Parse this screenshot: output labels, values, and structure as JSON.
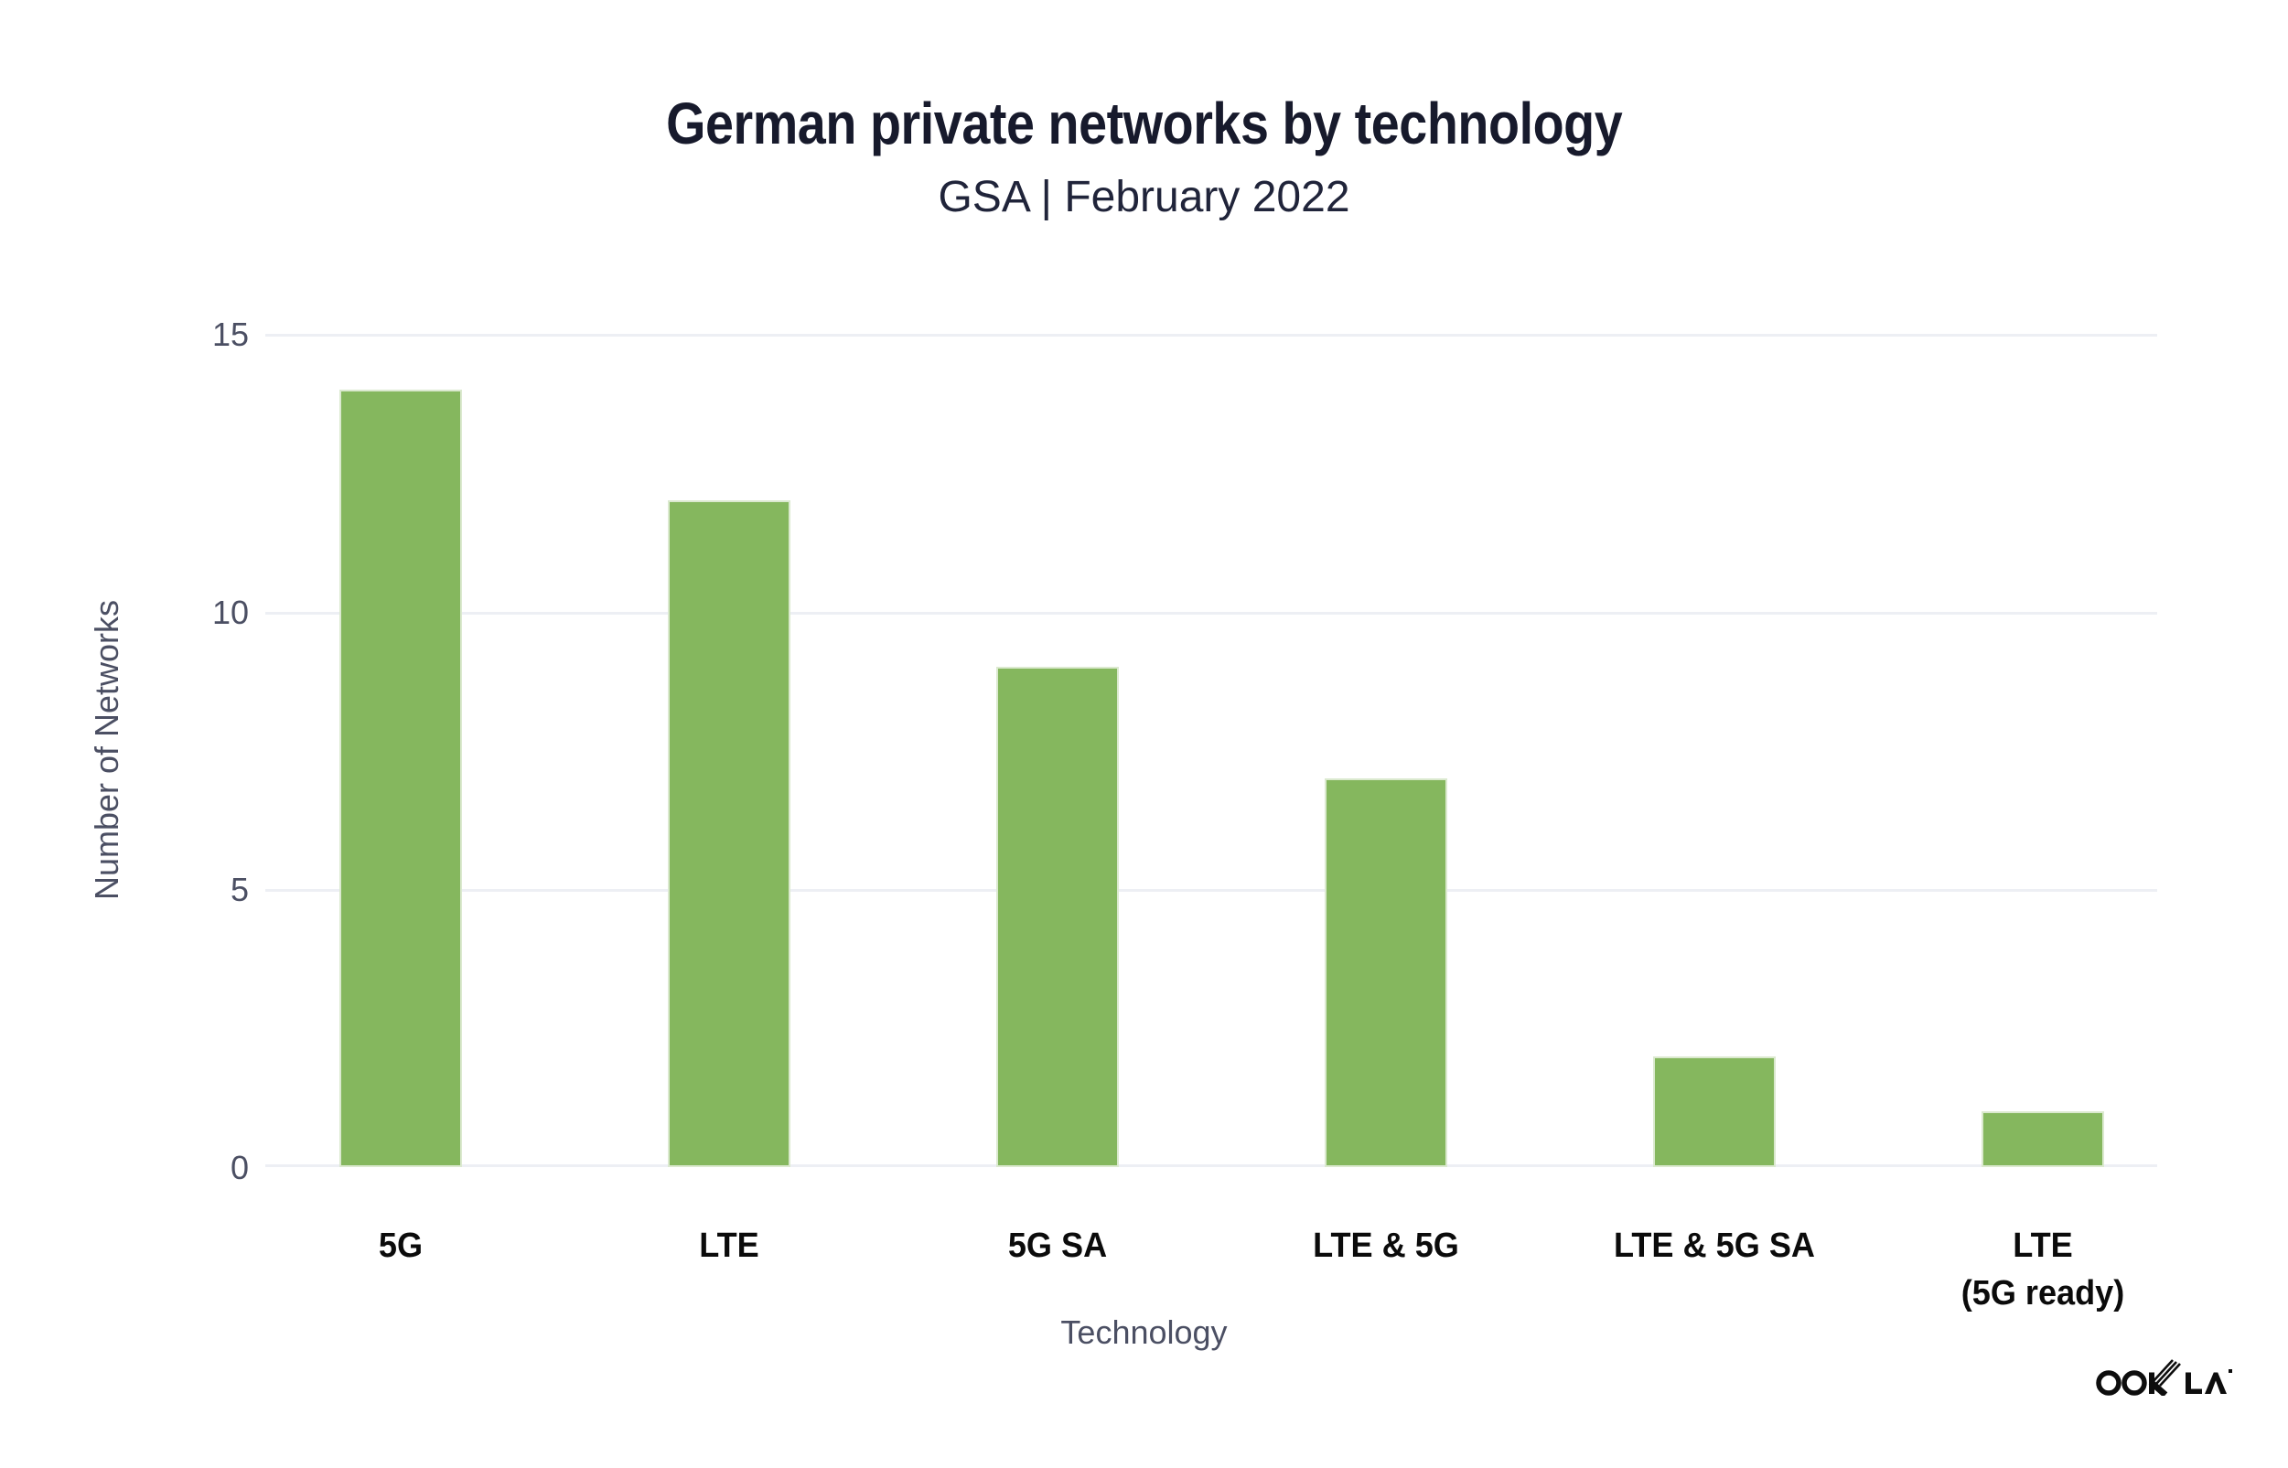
{
  "title": "German private networks by technology",
  "subtitle": "GSA | February 2022",
  "chart_data": {
    "type": "bar",
    "title": "German private networks by technology",
    "subtitle": "GSA | February 2022",
    "categories": [
      "5G",
      "LTE",
      "5G SA",
      "LTE & 5G",
      "LTE & 5G SA",
      "LTE (5G ready)"
    ],
    "category_label_lines": [
      [
        "5G"
      ],
      [
        "LTE"
      ],
      [
        "5G SA"
      ],
      [
        "LTE & 5G"
      ],
      [
        "LTE & 5G SA"
      ],
      [
        "LTE",
        "(5G ready)"
      ]
    ],
    "values": [
      14,
      12,
      9,
      7,
      2,
      1
    ],
    "xlabel": "Technology",
    "ylabel": "Number of Networks",
    "ylim": [
      0,
      15
    ],
    "yticks": [
      0,
      5,
      10,
      15
    ],
    "grid": "horizontal",
    "legend": "none",
    "bar_color": "#85b75e"
  },
  "colors": {
    "background": "#ffffff",
    "bar_fill": "#85b75e",
    "bar_edge": "#dbe9cf",
    "gridline": "#edeff4",
    "title_text": "#171a2c",
    "axis_text": "#4b4f63",
    "category_text": "#0b0b0b",
    "logo": "#0d0d0d"
  },
  "branding": {
    "logo_text": "OOKLA"
  }
}
